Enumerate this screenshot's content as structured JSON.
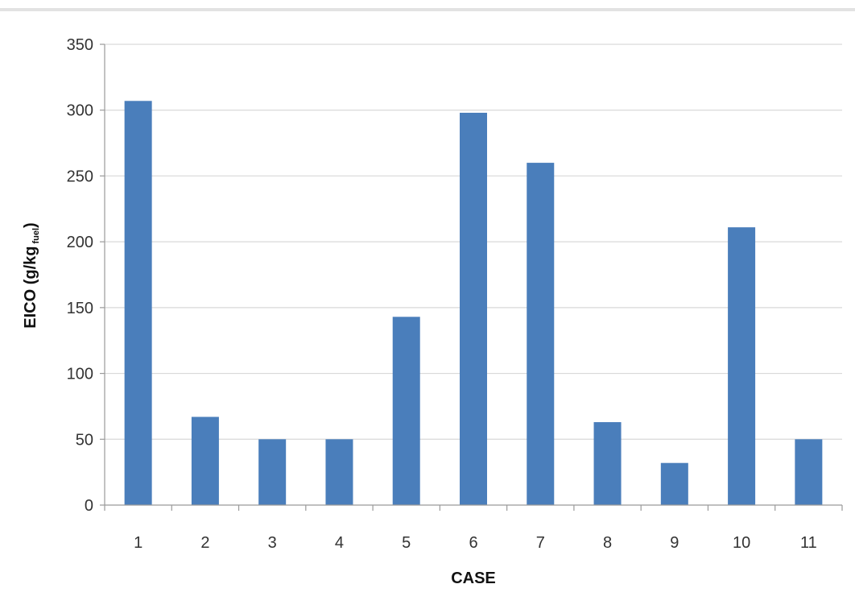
{
  "chart_data": {
    "type": "bar",
    "categories": [
      "1",
      "2",
      "3",
      "4",
      "5",
      "6",
      "7",
      "8",
      "9",
      "10",
      "11"
    ],
    "values": [
      307,
      67,
      50,
      50,
      143,
      298,
      260,
      63,
      32,
      211,
      50
    ],
    "xlabel": "CASE",
    "ylabel_main": "EICO (g/kg",
    "ylabel_sub": "fuel",
    "ylabel_end": ")",
    "ylim": [
      0,
      350
    ],
    "yticks": [
      0,
      50,
      100,
      150,
      200,
      250,
      300,
      350
    ],
    "grid": true,
    "bar_color": "#4a7ebb",
    "grid_color": "#d9d9d9"
  }
}
